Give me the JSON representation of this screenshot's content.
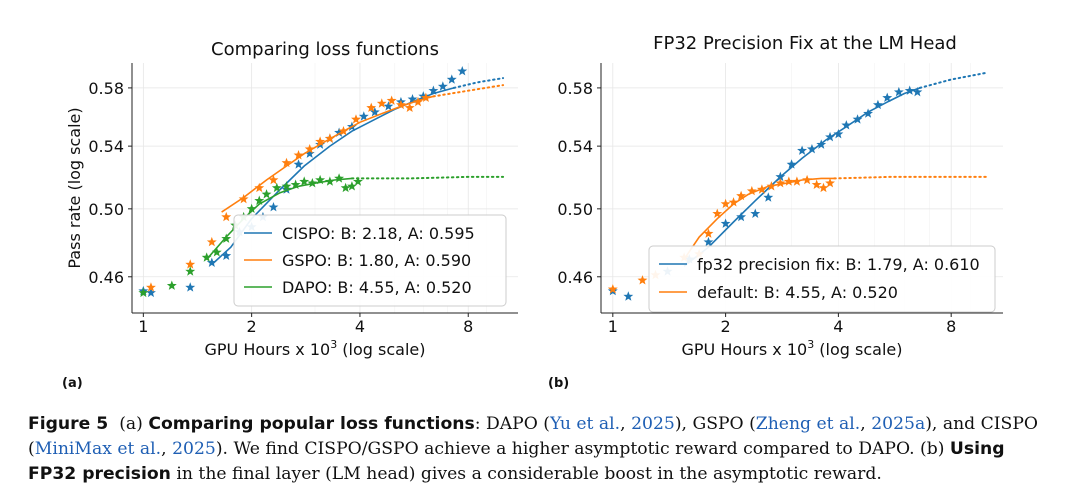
{
  "chart_data": [
    {
      "type": "line",
      "title": "Comparing loss functions",
      "xlabel": "GPU Hours x 10^3 (log scale)",
      "ylabel": "Pass rate (log scale)",
      "xscale": "log",
      "yscale": "log",
      "xlim": [
        0.93,
        11
      ],
      "ylim": [
        0.44,
        0.598
      ],
      "xticks": [
        1,
        2,
        4,
        8
      ],
      "yticks": [
        0.46,
        0.5,
        0.54,
        0.58
      ],
      "xtick_labels": [
        "1",
        "2",
        "4",
        "8"
      ],
      "ytick_labels": [
        "0.46",
        "0.50",
        "0.54",
        "0.58"
      ],
      "grid": true,
      "legend_position": "lower-right",
      "series": [
        {
          "name": "CISPO: B: 2.18, A: 0.595",
          "color": "#1f77b4",
          "fit": {
            "x": [
              1.55,
              1.75,
              2.0,
              2.4,
              2.8,
              3.3,
              3.8,
              4.4,
              5.0,
              5.7,
              6.4,
              7.3
            ],
            "y": [
              0.467,
              0.477,
              0.494,
              0.512,
              0.527,
              0.54,
              0.55,
              0.558,
              0.565,
              0.571,
              0.576,
              0.58
            ]
          },
          "extrapolation": {
            "x": [
              7.3,
              8.5,
              10.0
            ],
            "y": [
              0.58,
              0.584,
              0.587
            ]
          },
          "points": {
            "x": [
              1.0,
              1.05,
              1.35,
              1.55,
              1.7,
              1.85,
              2.0,
              2.15,
              2.3,
              2.5,
              2.7,
              2.9,
              3.1,
              3.3,
              3.5,
              3.8,
              4.1,
              4.4,
              4.8,
              5.2,
              5.6,
              6.0,
              6.4,
              6.8,
              7.2,
              7.7
            ],
            "y": [
              0.452,
              0.451,
              0.454,
              0.468,
              0.472,
              0.486,
              0.489,
              0.495,
              0.501,
              0.512,
              0.528,
              0.535,
              0.541,
              0.545,
              0.549,
              0.553,
              0.56,
              0.563,
              0.567,
              0.57,
              0.572,
              0.574,
              0.578,
              0.581,
              0.586,
              0.592
            ]
          }
        },
        {
          "name": "GSPO: B: 1.80, A: 0.590",
          "color": "#ff7f0e",
          "fit": {
            "x": [
              1.65,
              1.9,
              2.2,
              2.5,
              2.8,
              3.2,
              3.6,
              4.0,
              4.6,
              5.2,
              5.8,
              6.4
            ],
            "y": [
              0.498,
              0.507,
              0.518,
              0.527,
              0.535,
              0.543,
              0.55,
              0.556,
              0.562,
              0.567,
              0.571,
              0.574
            ]
          },
          "extrapolation": {
            "x": [
              6.4,
              8.0,
              10.0
            ],
            "y": [
              0.574,
              0.578,
              0.582
            ]
          },
          "points": {
            "x": [
              1.05,
              1.35,
              1.55,
              1.7,
              1.9,
              2.1,
              2.3,
              2.5,
              2.7,
              2.9,
              3.1,
              3.3,
              3.6,
              3.9,
              4.3,
              4.6,
              4.9,
              5.2,
              5.5,
              5.8,
              6.1
            ],
            "y": [
              0.454,
              0.467,
              0.48,
              0.495,
              0.506,
              0.513,
              0.518,
              0.529,
              0.534,
              0.538,
              0.543,
              0.545,
              0.55,
              0.558,
              0.566,
              0.569,
              0.571,
              0.568,
              0.566,
              0.57,
              0.573
            ]
          }
        },
        {
          "name": "DAPO: B: 4.55, A: 0.520",
          "color": "#2ca02c",
          "fit": {
            "x": [
              1.5,
              1.7,
              1.9,
              2.1,
              2.4,
              2.7,
              3.0,
              3.4,
              3.8
            ],
            "y": [
              0.47,
              0.483,
              0.494,
              0.503,
              0.51,
              0.514,
              0.516,
              0.518,
              0.519
            ]
          },
          "extrapolation": {
            "x": [
              3.8,
              5.5,
              8.0,
              10.0
            ],
            "y": [
              0.519,
              0.519,
              0.52,
              0.52
            ]
          },
          "points": {
            "x": [
              1.0,
              1.2,
              1.35,
              1.5,
              1.6,
              1.7,
              1.8,
              1.9,
              2.0,
              2.1,
              2.2,
              2.35,
              2.5,
              2.65,
              2.8,
              2.95,
              3.1,
              3.3,
              3.5,
              3.65,
              3.8,
              3.95
            ],
            "y": [
              0.451,
              0.455,
              0.463,
              0.471,
              0.474,
              0.482,
              0.49,
              0.495,
              0.5,
              0.505,
              0.509,
              0.513,
              0.514,
              0.515,
              0.517,
              0.516,
              0.518,
              0.517,
              0.519,
              0.513,
              0.514,
              0.517
            ]
          }
        }
      ]
    },
    {
      "type": "line",
      "title": "FP32 Precision Fix at the LM Head",
      "xlabel": "GPU Hours x 10^3 (log scale)",
      "ylabel": "",
      "xscale": "log",
      "yscale": "log",
      "xlim": [
        0.93,
        11
      ],
      "ylim": [
        0.44,
        0.598
      ],
      "xticks": [
        1,
        2,
        4,
        8
      ],
      "yticks": [
        0.46,
        0.5,
        0.54,
        0.58
      ],
      "xtick_labels": [
        "1",
        "2",
        "4",
        "8"
      ],
      "ytick_labels": [
        "0.46",
        "0.50",
        "0.54",
        "0.58"
      ],
      "grid": true,
      "legend_position": "lower-right",
      "series": [
        {
          "name": "fp32 precision fix: B: 1.79, A: 0.610",
          "color": "#1f77b4",
          "fit": {
            "x": [
              1.55,
              1.8,
              2.1,
              2.4,
              2.8,
              3.2,
              3.7,
              4.2,
              4.8,
              5.4,
              6.0,
              6.6
            ],
            "y": [
              0.466,
              0.477,
              0.492,
              0.505,
              0.52,
              0.532,
              0.544,
              0.553,
              0.563,
              0.57,
              0.576,
              0.58
            ]
          },
          "extrapolation": {
            "x": [
              6.6,
              8.0,
              10.0
            ],
            "y": [
              0.58,
              0.586,
              0.591
            ]
          },
          "points": {
            "x": [
              1.0,
              1.1,
              1.4,
              1.6,
              1.8,
              2.0,
              2.2,
              2.4,
              2.6,
              2.8,
              3.0,
              3.2,
              3.4,
              3.6,
              3.8,
              4.0,
              4.2,
              4.5,
              4.8,
              5.1,
              5.4,
              5.8,
              6.2,
              6.5
            ],
            "y": [
              0.452,
              0.449,
              0.463,
              0.47,
              0.48,
              0.491,
              0.495,
              0.497,
              0.507,
              0.52,
              0.528,
              0.537,
              0.538,
              0.541,
              0.546,
              0.548,
              0.554,
              0.558,
              0.562,
              0.568,
              0.573,
              0.577,
              0.578,
              0.577
            ]
          }
        },
        {
          "name": "default: B: 4.55, A: 0.520",
          "color": "#ff7f0e",
          "fit": {
            "x": [
              1.55,
              1.7,
              1.9,
              2.1,
              2.3,
              2.6,
              2.9,
              3.2,
              3.6,
              3.9
            ],
            "y": [
              0.47,
              0.483,
              0.494,
              0.503,
              0.509,
              0.514,
              0.516,
              0.518,
              0.519,
              0.519
            ]
          },
          "extrapolation": {
            "x": [
              3.9,
              5.5,
              8.0,
              10.0
            ],
            "y": [
              0.519,
              0.52,
              0.52,
              0.52
            ]
          },
          "points": {
            "x": [
              1.0,
              1.2,
              1.3,
              1.55,
              1.7,
              1.8,
              1.9,
              2.0,
              2.1,
              2.2,
              2.35,
              2.5,
              2.65,
              2.8,
              2.95,
              3.1,
              3.3,
              3.5,
              3.65,
              3.8
            ],
            "y": [
              0.453,
              0.458,
              0.461,
              0.471,
              0.473,
              0.485,
              0.497,
              0.503,
              0.504,
              0.508,
              0.511,
              0.512,
              0.514,
              0.516,
              0.517,
              0.517,
              0.518,
              0.515,
              0.513,
              0.516
            ]
          }
        }
      ]
    }
  ],
  "panels": {
    "a": {
      "tag": "(a)"
    },
    "b": {
      "tag": "(b)"
    }
  },
  "caption": {
    "figure_label": "Figure 5",
    "a_marker": "(a)",
    "a_heading": "Comparing popular loss functions",
    "a_body_1": ":  DAPO (",
    "cite_1_author": "Yu et al.",
    "cite_sep_1": ", ",
    "cite_1_year": "2025",
    "a_body_2": "), GSPO (",
    "cite_2_author": "Zheng et al.",
    "cite_sep_2": ", ",
    "cite_2_year": "2025a",
    "a_body_3": "), and CISPO (",
    "cite_3_author": "MiniMax et al.",
    "cite_sep_3": ", ",
    "cite_3_year": "2025",
    "a_body_4": "). We find CISPO/GSPO achieve a higher asymptotic reward compared to DAPO. (b) ",
    "b_heading_1": "Using",
    "b_heading_2": "FP32 precision",
    "b_body": " in the final layer (LM head) gives a considerable boost in the asymptotic reward."
  }
}
